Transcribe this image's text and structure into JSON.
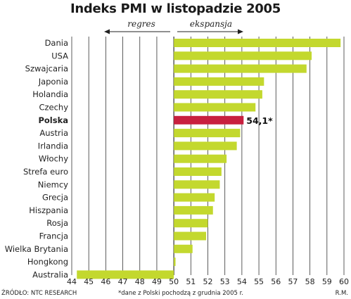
{
  "chart_data": {
    "type": "bar",
    "orientation": "horizontal",
    "title": "Indeks PMI w listopadzie 2005",
    "direction_labels": {
      "left": "regres",
      "right": "ekspansja"
    },
    "baseline": 50,
    "xlim": [
      44,
      60
    ],
    "xticks": [
      44,
      45,
      46,
      47,
      48,
      49,
      50,
      51,
      52,
      53,
      54,
      55,
      56,
      57,
      58,
      59,
      60
    ],
    "grid": true,
    "categories": [
      "Dania",
      "USA",
      "Szwajcaria",
      "Japonia",
      "Holandia",
      "Czechy",
      "Polska",
      "Austria",
      "Irlandia",
      "Włochy",
      "Strefa euro",
      "Niemcy",
      "Grecja",
      "Hiszpania",
      "Rosja",
      "Francja",
      "Wielka Brytania",
      "Hongkong",
      "Australia"
    ],
    "values": [
      59.8,
      58.1,
      57.8,
      55.3,
      55.2,
      54.8,
      54.1,
      53.9,
      53.7,
      53.1,
      52.8,
      52.7,
      52.4,
      52.3,
      52.0,
      51.9,
      51.1,
      50.1,
      44.3
    ],
    "highlight_category": "Polska",
    "highlight_label": "54,1*",
    "colors": {
      "bar": "#c3d82e",
      "highlight": "#c8203f",
      "grid": "#333333"
    }
  },
  "footer": {
    "source": "ŹRÓDŁO: NTC RESEARCH",
    "note": "*dane z Polski pochodzą z grudnia 2005 r.",
    "author": "R.M."
  }
}
